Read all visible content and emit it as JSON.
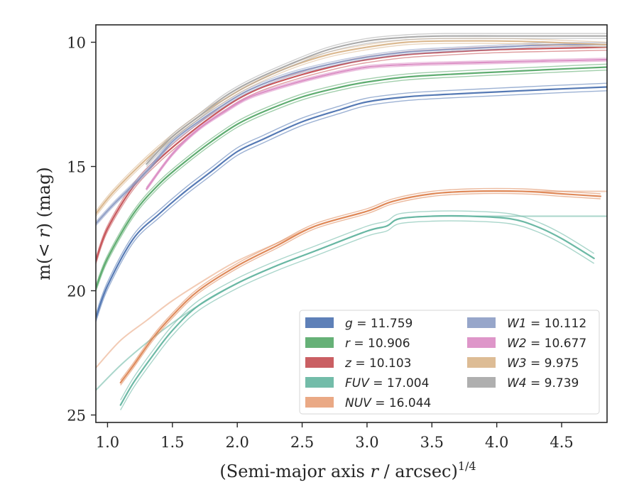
{
  "chart_data": {
    "type": "line",
    "xlabel": "(Semi-major axis r / arcsec)",
    "xlabel_var": "r",
    "xlabel_sup": "1/4",
    "ylabel": "m(< r) (mag)",
    "ylabel_var": "r",
    "xlim": [
      0.91,
      4.85
    ],
    "ylim": [
      25.3,
      9.3
    ],
    "y_inverted": true,
    "xticks": [
      1.0,
      1.5,
      2.0,
      2.5,
      3.0,
      3.5,
      4.0,
      4.5
    ],
    "xtick_labels": [
      "1.0",
      "1.5",
      "2.0",
      "2.5",
      "3.0",
      "3.5",
      "4.0",
      "4.5"
    ],
    "yticks": [
      10,
      15,
      20,
      25
    ],
    "ytick_labels": [
      "10",
      "15",
      "20",
      "25"
    ],
    "grid": false,
    "legend_position": "lower-right",
    "legend_columns": 2,
    "series": [
      {
        "name": "g",
        "value": "11.759",
        "color": "#4c72b0",
        "x": [
          0.91,
          1.0,
          1.2,
          1.4,
          1.6,
          1.8,
          2.0,
          2.2,
          2.5,
          2.8,
          3.0,
          3.3,
          3.6,
          4.0,
          4.4,
          4.85
        ],
        "y": [
          21.1,
          19.8,
          17.9,
          16.9,
          16.0,
          15.2,
          14.4,
          13.9,
          13.2,
          12.7,
          12.4,
          12.2,
          12.1,
          12.0,
          11.9,
          11.8
        ],
        "band": 0.15
      },
      {
        "name": "r",
        "value": "10.906",
        "color": "#55a868",
        "x": [
          0.91,
          1.0,
          1.2,
          1.4,
          1.6,
          1.8,
          2.0,
          2.2,
          2.5,
          2.8,
          3.0,
          3.3,
          3.6,
          4.0,
          4.4,
          4.85
        ],
        "y": [
          19.9,
          18.7,
          16.9,
          15.7,
          14.8,
          14.0,
          13.3,
          12.8,
          12.2,
          11.8,
          11.6,
          11.4,
          11.3,
          11.2,
          11.1,
          11.0
        ],
        "band": 0.12
      },
      {
        "name": "z",
        "value": "10.103",
        "color": "#c44e52",
        "x": [
          0.91,
          1.0,
          1.2,
          1.4,
          1.6,
          1.8,
          2.0,
          2.2,
          2.5,
          2.8,
          3.0,
          3.3,
          3.6,
          4.0,
          4.4,
          4.85
        ],
        "y": [
          18.8,
          17.5,
          15.8,
          14.7,
          13.8,
          13.0,
          12.3,
          11.8,
          11.3,
          10.9,
          10.7,
          10.5,
          10.4,
          10.3,
          10.25,
          10.2
        ],
        "band": 0.12
      },
      {
        "name": "FUV",
        "value": "17.004",
        "color": "#64b5a0",
        "faint": true,
        "x": [
          0.91,
          1.1,
          1.3,
          1.5,
          1.7,
          2.0,
          2.3,
          2.6,
          3.0,
          3.15,
          3.25,
          3.5,
          3.8,
          4.1,
          4.4,
          4.6,
          4.75,
          4.85
        ],
        "y": [
          24.0,
          23.0,
          22.1,
          21.3,
          20.6,
          19.7,
          19.0,
          18.4,
          17.6,
          17.4,
          17.1,
          17.0,
          17.0,
          17.0,
          17.0,
          17.0,
          17.0,
          17.0
        ],
        "band": 0
      },
      {
        "name": "FUV-main",
        "value": "",
        "color": "#64b5a0",
        "x": [
          1.1,
          1.2,
          1.35,
          1.5,
          1.7,
          2.0,
          2.3,
          2.6,
          3.0,
          3.15,
          3.25,
          3.5,
          3.8,
          4.1,
          4.3,
          4.5,
          4.75
        ],
        "y": [
          24.6,
          23.7,
          22.6,
          21.6,
          20.6,
          19.7,
          19.0,
          18.4,
          17.6,
          17.4,
          17.1,
          17.0,
          17.0,
          17.1,
          17.4,
          17.9,
          18.7
        ],
        "band": 0.2
      },
      {
        "name": "NUV",
        "value": "16.044",
        "color": "#e8a078",
        "faint": true,
        "x": [
          0.91,
          1.1,
          1.3,
          1.5,
          1.8,
          2.0,
          2.3,
          2.6,
          3.0,
          3.2,
          3.5,
          3.8,
          4.2,
          4.5,
          4.85
        ],
        "y": [
          23.1,
          22.0,
          21.2,
          20.4,
          19.4,
          18.8,
          18.1,
          17.4,
          16.8,
          16.4,
          16.1,
          16.0,
          16.0,
          16.0,
          16.0
        ],
        "band": 0
      },
      {
        "name": "NUV-main",
        "value": "",
        "color": "#dd8452",
        "x": [
          1.1,
          1.2,
          1.35,
          1.5,
          1.7,
          2.0,
          2.3,
          2.6,
          3.0,
          3.2,
          3.5,
          3.8,
          4.2,
          4.5,
          4.8
        ],
        "y": [
          23.7,
          23.0,
          21.9,
          21.0,
          20.0,
          19.0,
          18.2,
          17.4,
          16.8,
          16.4,
          16.1,
          16.0,
          16.0,
          16.1,
          16.2
        ],
        "band": 0.1
      },
      {
        "name": "W1",
        "value": "10.112",
        "color": "#8c9cc4",
        "x": [
          0.91,
          1.05,
          1.3,
          1.5,
          1.7,
          1.9,
          2.1,
          2.4,
          2.7,
          3.0,
          3.3,
          3.6,
          4.0,
          4.4,
          4.85
        ],
        "y": [
          17.3,
          16.5,
          15.2,
          14.0,
          13.2,
          12.5,
          11.9,
          11.3,
          10.9,
          10.6,
          10.4,
          10.3,
          10.2,
          10.1,
          10.1
        ],
        "band": 0.08
      },
      {
        "name": "W2",
        "value": "10.677",
        "color": "#da8bc3",
        "x": [
          1.3,
          1.5,
          1.7,
          1.9,
          2.1,
          2.4,
          2.7,
          3.0,
          3.3,
          3.6,
          4.0,
          4.4,
          4.85
        ],
        "y": [
          15.9,
          14.5,
          13.5,
          12.8,
          12.2,
          11.7,
          11.3,
          11.0,
          10.9,
          10.85,
          10.8,
          10.75,
          10.7
        ],
        "band": 0.06
      },
      {
        "name": "W3",
        "value": "9.975",
        "color": "#d9b58a",
        "x": [
          0.91,
          1.05,
          1.3,
          1.5,
          1.7,
          1.9,
          2.1,
          2.4,
          2.7,
          3.0,
          3.3,
          3.6,
          4.0,
          4.4,
          4.85
        ],
        "y": [
          16.9,
          16.0,
          14.7,
          13.8,
          13.0,
          12.3,
          11.7,
          11.0,
          10.5,
          10.2,
          10.0,
          9.95,
          9.95,
          10.0,
          10.1
        ],
        "band": 0.1
      },
      {
        "name": "W4",
        "value": "9.739",
        "color": "#a6a6a6",
        "x": [
          1.3,
          1.5,
          1.7,
          1.9,
          2.1,
          2.4,
          2.7,
          3.0,
          3.3,
          3.6,
          4.0,
          4.4,
          4.85
        ],
        "y": [
          14.9,
          13.8,
          13.0,
          12.2,
          11.6,
          10.9,
          10.3,
          9.95,
          9.8,
          9.75,
          9.75,
          9.75,
          9.75
        ],
        "band": 0.1
      }
    ],
    "legend": {
      "columns": [
        [
          {
            "var": "g",
            "value": "11.759",
            "color": "#4c72b0"
          },
          {
            "var": "r",
            "value": "10.906",
            "color": "#55a868"
          },
          {
            "var": "z",
            "value": "10.103",
            "color": "#c44e52"
          },
          {
            "var": "FUV",
            "value": "17.004",
            "color": "#64b5a0"
          },
          {
            "var": "NUV",
            "value": "16.044",
            "color": "#e8a078"
          }
        ],
        [
          {
            "var": "W1",
            "value": "10.112",
            "color": "#8c9cc4"
          },
          {
            "var": "W2",
            "value": "10.677",
            "color": "#da8bc3"
          },
          {
            "var": "W3",
            "value": "9.975",
            "color": "#d9b58a"
          },
          {
            "var": "W4",
            "value": "9.739",
            "color": "#a6a6a6"
          }
        ]
      ]
    }
  }
}
